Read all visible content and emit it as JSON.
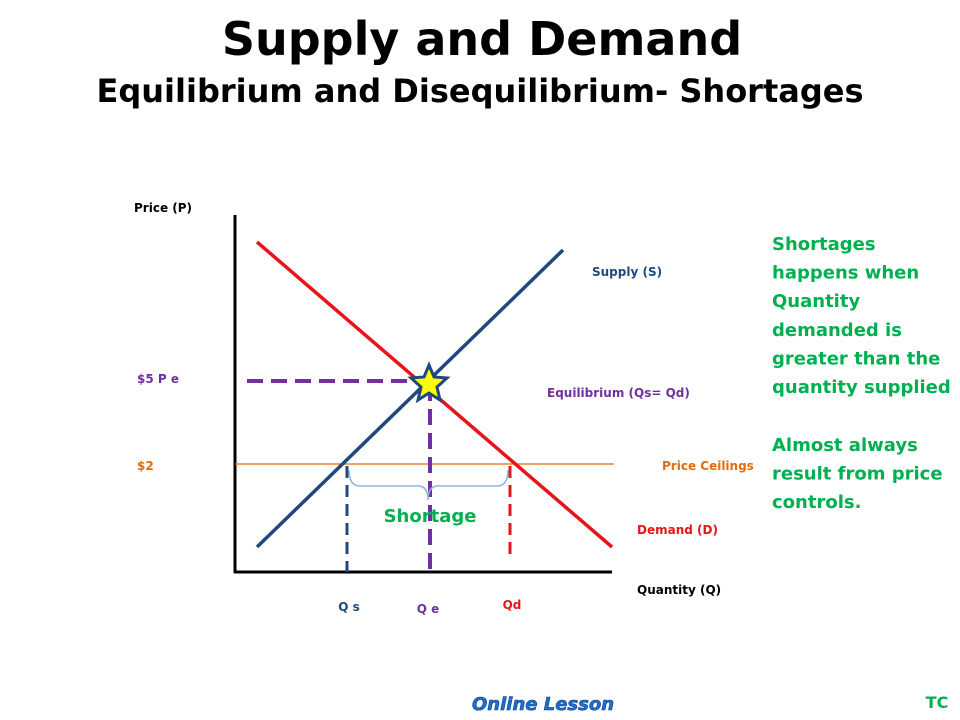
{
  "header": {
    "title": "Supply and Demand",
    "subtitle": "Equilibrium and Disequilibrium- Shortages"
  },
  "diagram": {
    "y_axis_label": "Price (P)",
    "x_axis_label": "Quantity (Q)",
    "supply_label": "Supply (S)",
    "demand_label": "Demand (D)",
    "equilibrium_label": "Equilibrium (Qs= Qd)",
    "equilibrium_price_label": "$5 P e",
    "ceiling_price_label": "$2",
    "ceiling_label": "Price Ceilings",
    "shortage_label": "Shortage",
    "qs_label": "Q s",
    "qe_label": "Q e",
    "qd_label": "Qd"
  },
  "note": {
    "lines": [
      "Shortages",
      "happens when",
      "Quantity",
      "demanded is",
      "greater than the",
      "quantity supplied"
    ],
    "lines2": [
      "Almost always",
      "result from price",
      "controls."
    ]
  },
  "footer": {
    "badge": "Online Lesson",
    "initials": "TC"
  }
}
